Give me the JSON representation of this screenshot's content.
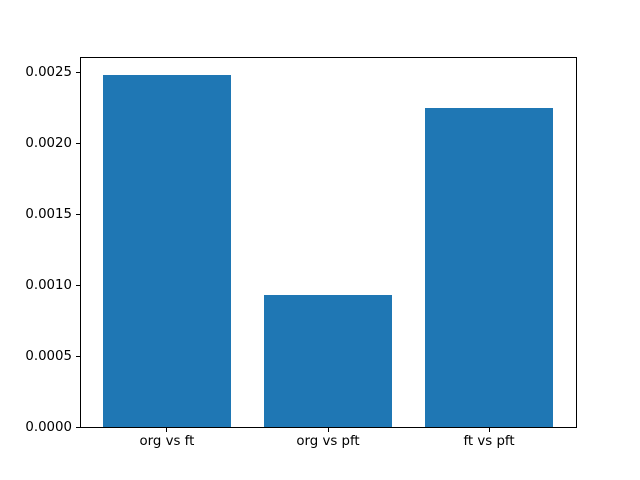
{
  "figure": {
    "background": "#ffffff",
    "frame_color": "#000000",
    "tick_color": "#000000",
    "text_color": "#000000"
  },
  "chart_data": {
    "type": "bar",
    "title": "",
    "xlabel": "",
    "ylabel": "",
    "categories": [
      "org vs ft",
      "org vs pft",
      "ft vs pft"
    ],
    "values": [
      0.00248,
      0.00093,
      0.00225
    ],
    "bar_color": "#1f77b4",
    "bar_width": 0.8,
    "xlim": [
      -0.54,
      2.54
    ],
    "ylim": [
      0,
      0.002604
    ],
    "ytick_labels": [
      "0.0000",
      "0.0005",
      "0.0010",
      "0.0015",
      "0.0020",
      "0.0025"
    ],
    "grid": false,
    "legend": "none"
  }
}
